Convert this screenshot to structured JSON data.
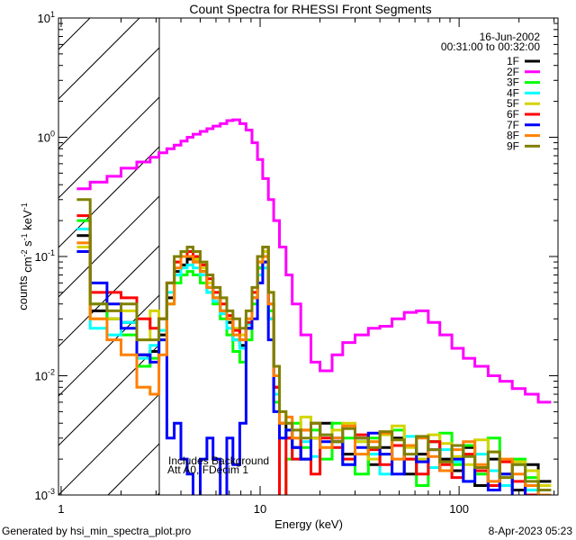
{
  "chart_data": {
    "type": "line",
    "title": "Count Spectra for RHESSI Front Segments",
    "xlabel": "Energy (keV)",
    "ylabel": "counts cm^-2 s^-1 keV^-1",
    "ylabel_parts": [
      "counts cm",
      "-2",
      " s",
      "-1",
      " keV",
      "-1"
    ],
    "xscale": "log",
    "yscale": "log",
    "xlim": [
      0.97,
      314
    ],
    "ylim": [
      0.001,
      10
    ],
    "x_ticks": [
      {
        "value": 1,
        "label": "1"
      },
      {
        "value": 10,
        "label": "10"
      },
      {
        "value": 100,
        "label": "100"
      }
    ],
    "y_ticks": [
      {
        "value": 0.001,
        "base": "10",
        "exp": "-3"
      },
      {
        "value": 0.01,
        "base": "10",
        "exp": "-2"
      },
      {
        "value": 0.1,
        "base": "10",
        "exp": "-1"
      },
      {
        "value": 1,
        "base": "10",
        "exp": "0"
      },
      {
        "value": 10,
        "base": "10",
        "exp": "1"
      }
    ],
    "date": "16-Jun-2002",
    "time_range": "00:31:00 to 00:32:00",
    "annotations": [
      "Includes Background",
      "Att A0, FDecim 1"
    ],
    "excluded_region_keV": [
      0.97,
      3.0
    ],
    "legend_position": "top-right",
    "energy_edges": [
      1.2,
      1.4,
      1.7,
      2.0,
      2.4,
      2.8,
      3.1,
      3.4,
      3.7,
      4.0,
      4.3,
      4.6,
      5.0,
      5.4,
      5.8,
      6.3,
      6.8,
      7.3,
      7.9,
      8.5,
      9.1,
      9.7,
      10.3,
      11,
      11.7,
      12.5,
      13.5,
      14.5,
      16,
      18,
      20,
      23,
      26,
      30,
      35,
      40,
      46,
      53,
      61,
      70,
      80,
      92,
      105,
      120,
      140,
      160,
      185,
      215,
      250,
      290
    ],
    "series": [
      {
        "name": "1F",
        "color": "#000000",
        "values": [
          0.15,
          0.035,
          0.03,
          0.028,
          0.015,
          0.016,
          0.022,
          0.045,
          0.075,
          0.085,
          0.095,
          0.09,
          0.075,
          0.055,
          0.045,
          0.035,
          0.028,
          0.02,
          0.018,
          0.025,
          0.045,
          0.08,
          0.09,
          0.03,
          0.008,
          0.004,
          0.003,
          0.0025,
          0.002,
          0.003,
          0.004,
          0.0028,
          0.0022,
          0.003,
          0.0018,
          0.0025,
          0.003,
          0.0015,
          0.0022,
          0.0028,
          0.002,
          0.0016,
          0.0025,
          0.0012,
          0.002,
          0.0015,
          0.0011,
          0.0018,
          0.0013
        ]
      },
      {
        "name": "2F",
        "color": "#ff00ff",
        "values": [
          0.37,
          0.42,
          0.47,
          0.55,
          0.62,
          0.68,
          0.74,
          0.8,
          0.86,
          0.93,
          1.0,
          1.06,
          1.12,
          1.18,
          1.24,
          1.3,
          1.38,
          1.4,
          1.3,
          1.15,
          0.9,
          0.65,
          0.45,
          0.3,
          0.2,
          0.12,
          0.07,
          0.04,
          0.022,
          0.013,
          0.011,
          0.015,
          0.019,
          0.022,
          0.025,
          0.026,
          0.03,
          0.034,
          0.035,
          0.028,
          0.022,
          0.017,
          0.014,
          0.012,
          0.01,
          0.009,
          0.0078,
          0.007,
          0.006
        ]
      },
      {
        "name": "3F",
        "color": "#00ff00",
        "values": [
          0.2,
          0.04,
          0.03,
          0.022,
          0.012,
          0.014,
          0.02,
          0.04,
          0.06,
          0.07,
          0.075,
          0.07,
          0.06,
          0.05,
          0.04,
          0.03,
          0.022,
          0.016,
          0.013,
          0.02,
          0.04,
          0.08,
          0.12,
          0.035,
          0.006,
          0.0009,
          0.002,
          0.004,
          0.0025,
          0.0035,
          0.002,
          0.004,
          0.003,
          0.0015,
          0.003,
          0.0022,
          0.0035,
          0.002,
          0.0012,
          0.0028,
          0.0033,
          0.0018,
          0.0026,
          0.0015,
          0.003,
          0.0012,
          0.002,
          0.0014,
          0.001
        ]
      },
      {
        "name": "4F",
        "color": "#00ffff",
        "values": [
          0.17,
          0.025,
          0.022,
          0.028,
          0.014,
          0.018,
          0.024,
          0.05,
          0.07,
          0.08,
          0.085,
          0.08,
          0.07,
          0.05,
          0.042,
          0.033,
          0.025,
          0.02,
          0.017,
          0.027,
          0.045,
          0.07,
          0.08,
          0.03,
          0.007,
          0.003,
          0.0035,
          0.002,
          0.0028,
          0.0021,
          0.0032,
          0.0025,
          0.0018,
          0.0028,
          0.0022,
          0.0015,
          0.0026,
          0.0031,
          0.002,
          0.0017,
          0.0024,
          0.0019,
          0.0013,
          0.0022,
          0.0016,
          0.0012,
          0.0018,
          0.0011,
          0.0009
        ]
      },
      {
        "name": "5F",
        "color": "#d4d400",
        "values": [
          0.12,
          0.03,
          0.03,
          0.035,
          0.02,
          0.035,
          0.03,
          0.06,
          0.09,
          0.1,
          0.1,
          0.095,
          0.08,
          0.06,
          0.05,
          0.04,
          0.03,
          0.025,
          0.022,
          0.03,
          0.05,
          0.09,
          0.11,
          0.05,
          0.012,
          0.005,
          0.004,
          0.003,
          0.0045,
          0.003,
          0.0025,
          0.0035,
          0.004,
          0.0028,
          0.002,
          0.0032,
          0.0038,
          0.0025,
          0.002,
          0.0032,
          0.0027,
          0.0021,
          0.0018,
          0.0029,
          0.0023,
          0.0015,
          0.0019,
          0.0016,
          0.0012
        ]
      },
      {
        "name": "6F",
        "color": "#ff0000",
        "values": [
          0.22,
          0.05,
          0.05,
          0.045,
          0.03,
          0.025,
          0.03,
          0.06,
          0.09,
          0.1,
          0.11,
          0.1,
          0.085,
          0.065,
          0.05,
          0.04,
          0.032,
          0.024,
          0.02,
          0.028,
          0.05,
          0.1,
          0.12,
          0.04,
          0.008,
          0.0009,
          0.003,
          0.002,
          0.0035,
          0.0015,
          0.003,
          0.0025,
          0.002,
          0.0032,
          0.0024,
          0.0018,
          0.0026,
          0.002,
          0.0015,
          0.0028,
          0.0018,
          0.0014,
          0.0022,
          0.0016,
          0.0012,
          0.0019,
          0.0013,
          0.001,
          0.0009
        ]
      },
      {
        "name": "7F",
        "color": "#0000ff",
        "values": [
          0.11,
          0.06,
          0.04,
          0.025,
          0.015,
          0.013,
          0.02,
          0.003,
          0.004,
          0.002,
          0.0015,
          0.0009,
          0.002,
          0.003,
          0.002,
          0.0009,
          0.003,
          0.0018,
          0.004,
          0.025,
          0.03,
          0.06,
          0.09,
          0.02,
          0.005,
          0.003,
          0.0035,
          0.0025,
          0.002,
          0.004,
          0.0028,
          0.003,
          0.0018,
          0.0025,
          0.0033,
          0.0022,
          0.0015,
          0.0026,
          0.0019,
          0.0024,
          0.0016,
          0.002,
          0.0013,
          0.0017,
          0.0011,
          0.0015,
          0.0009,
          0.0012,
          0.001
        ]
      },
      {
        "name": "8F",
        "color": "#ff8000",
        "values": [
          0.13,
          0.03,
          0.02,
          0.015,
          0.008,
          0.007,
          0.015,
          0.04,
          0.08,
          0.1,
          0.1,
          0.09,
          0.075,
          0.055,
          0.045,
          0.035,
          0.03,
          0.022,
          0.02,
          0.03,
          0.045,
          0.09,
          0.1,
          0.04,
          0.01,
          0.004,
          0.0045,
          0.003,
          0.0035,
          0.004,
          0.0025,
          0.003,
          0.0038,
          0.0022,
          0.0028,
          0.0033,
          0.002,
          0.0026,
          0.003,
          0.0021,
          0.0016,
          0.0024,
          0.0028,
          0.0018,
          0.0013,
          0.002,
          0.0015,
          0.0012,
          0.001
        ]
      },
      {
        "name": "9F",
        "color": "#808000",
        "values": [
          0.3,
          0.04,
          0.035,
          0.04,
          0.02,
          0.02,
          0.03,
          0.06,
          0.1,
          0.11,
          0.12,
          0.11,
          0.09,
          0.07,
          0.055,
          0.045,
          0.035,
          0.03,
          0.025,
          0.035,
          0.055,
          0.1,
          0.12,
          0.05,
          0.012,
          0.005,
          0.004,
          0.0035,
          0.003,
          0.004,
          0.0032,
          0.0028,
          0.0036,
          0.003,
          0.0025,
          0.0034,
          0.0029,
          0.0022,
          0.0031,
          0.0024,
          0.0019,
          0.0026,
          0.0021,
          0.0017,
          0.0023,
          0.0014,
          0.0018,
          0.0013,
          0.0011
        ]
      }
    ]
  },
  "footer": {
    "generated_by": "Generated by hsi_min_spectra_plot.pro",
    "timestamp": "8-Apr-2023 05:23"
  }
}
